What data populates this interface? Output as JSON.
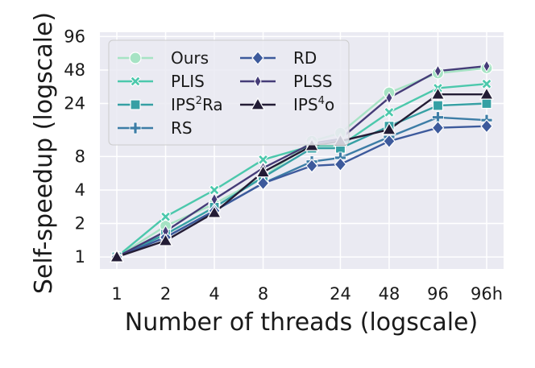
{
  "chart_data": {
    "type": "line",
    "title": "",
    "xlabel": "Number of threads (logscale)",
    "ylabel": "Self-speedup (logscale)",
    "x_tick_labels": [
      "1",
      "2",
      "4",
      "8",
      "24",
      "48",
      "96",
      "96h"
    ],
    "x_positions": [
      1,
      2,
      4,
      8,
      16,
      24,
      48,
      96,
      192
    ],
    "y_scale": "log2",
    "y_ticks": [
      1,
      2,
      4,
      8,
      24,
      48,
      96
    ],
    "y_tick_labels": [
      "1",
      "2",
      "4",
      "8",
      "24",
      "48",
      "96"
    ],
    "ylim": [
      0.78,
      105
    ],
    "grid": true,
    "legend_position": "top-left",
    "series": [
      {
        "name": "Ours",
        "label_text": "Ours",
        "label_sup": "",
        "label_tail": "",
        "color": "#a6e3c4",
        "marker": "circle",
        "values": [
          1,
          1.9,
          3.0,
          5.2,
          11,
          13,
          30,
          45,
          50
        ]
      },
      {
        "name": "PLIS",
        "label_text": "PLIS",
        "label_sup": "",
        "label_tail": "",
        "color": "#4cc8ac",
        "marker": "x",
        "values": [
          1,
          2.3,
          4.0,
          7.5,
          10,
          10,
          20,
          33,
          36
        ]
      },
      {
        "name": "IPS2Ra",
        "label_text": "IPS",
        "label_sup": "2",
        "label_tail": "Ra",
        "color": "#36a0a4",
        "marker": "square",
        "values": [
          1,
          1.6,
          2.8,
          5.2,
          9.5,
          9.5,
          15,
          23,
          24
        ]
      },
      {
        "name": "RS",
        "label_text": "RS",
        "label_sup": "",
        "label_tail": "",
        "color": "#3d7da6",
        "marker": "plus",
        "values": [
          1,
          1.5,
          2.6,
          4.6,
          7.2,
          7.8,
          12,
          18,
          17
        ]
      },
      {
        "name": "RD",
        "label_text": "RD",
        "label_sup": "",
        "label_tail": "",
        "color": "#3d5a9c",
        "marker": "diamond",
        "values": [
          1,
          1.5,
          2.6,
          4.6,
          6.6,
          6.8,
          11,
          14.5,
          15
        ]
      },
      {
        "name": "PLSS",
        "label_text": "PLSS",
        "label_sup": "",
        "label_tail": "",
        "color": "#453c78",
        "marker": "thin-diamond",
        "values": [
          1,
          1.7,
          3.3,
          6.3,
          10.5,
          11.5,
          27,
          47,
          52
        ]
      },
      {
        "name": "IPS4o",
        "label_text": "IPS",
        "label_sup": "4",
        "label_tail": "o",
        "color": "#231c35",
        "marker": "triangle",
        "values": [
          1,
          1.4,
          2.5,
          5.8,
          10,
          11,
          14,
          29,
          29
        ]
      }
    ]
  }
}
